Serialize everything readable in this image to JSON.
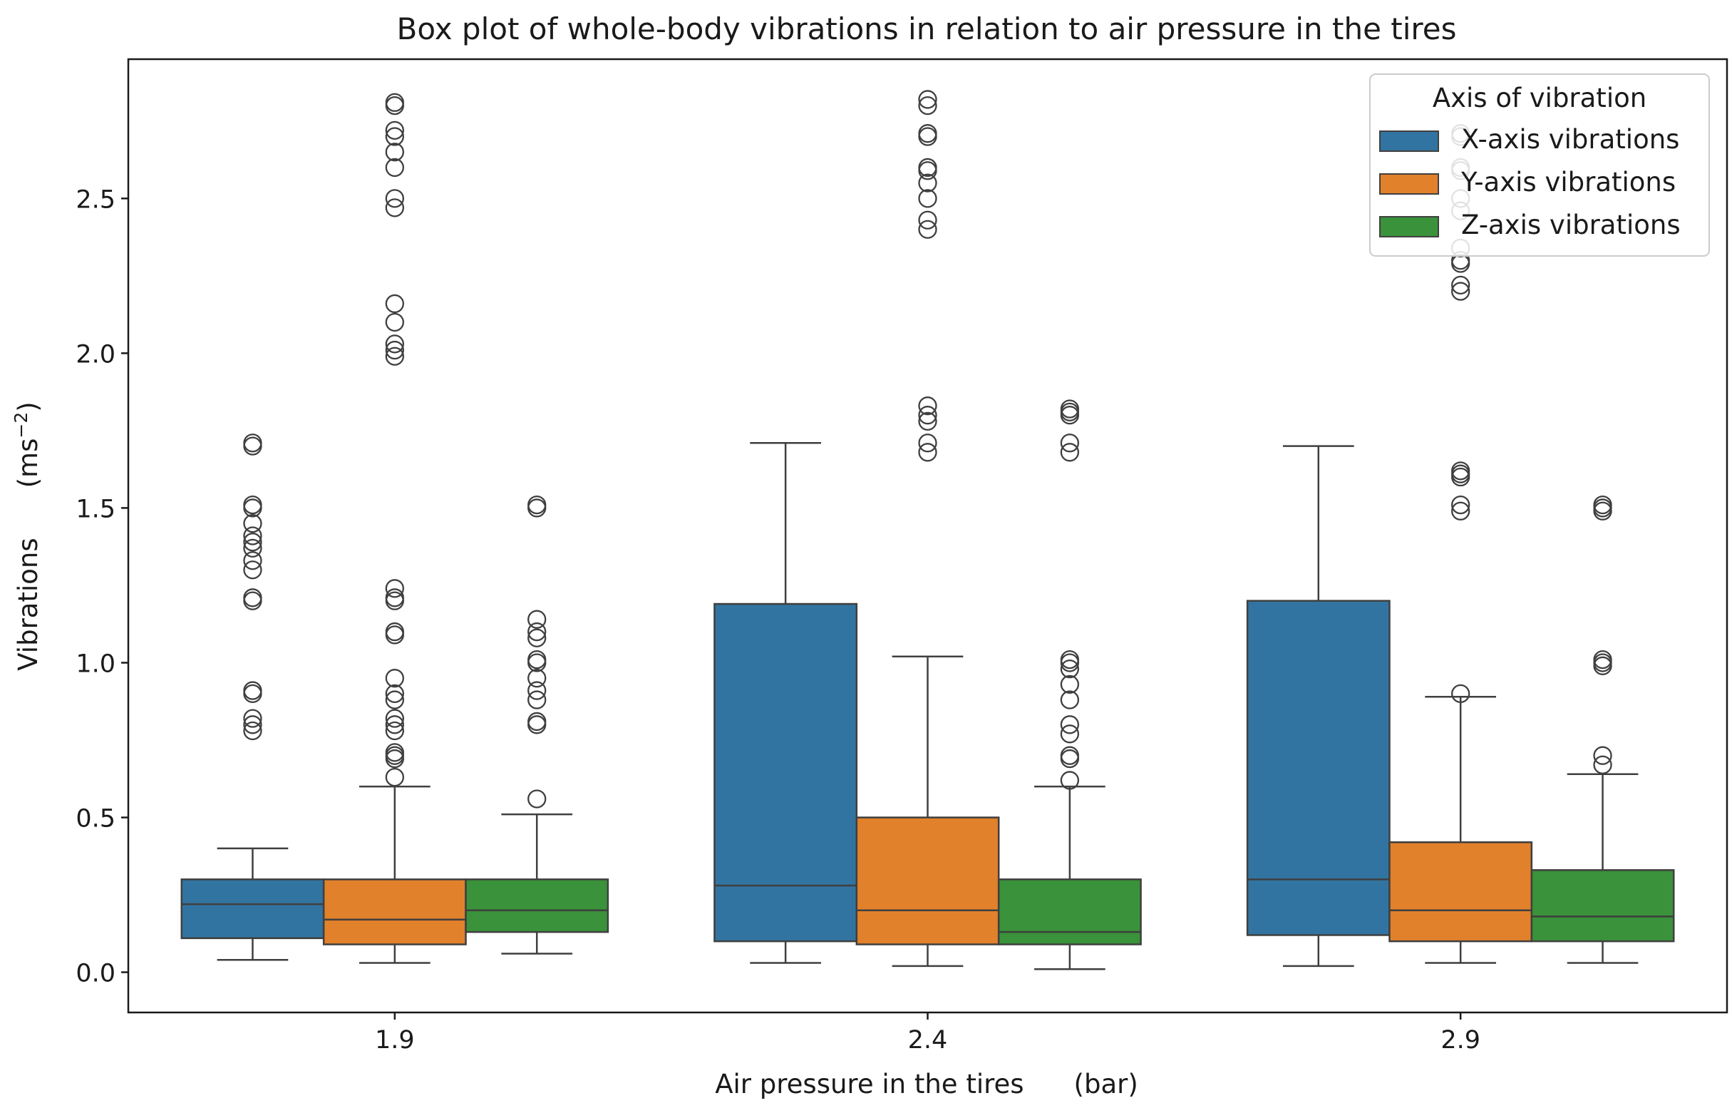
{
  "chart_data": {
    "type": "box",
    "title": "Box plot of whole-body vibrations in relation to air pressure in the tires",
    "xlabel": {
      "text": "Air pressure in the tires",
      "unit": "(bar)"
    },
    "ylabel": {
      "text": "Vibrations",
      "unit": "(ms",
      "unit_exp": "−2",
      "unit_close": ")"
    },
    "ylim": [
      -0.13,
      2.95
    ],
    "yticks": [
      0.0,
      0.5,
      1.0,
      1.5,
      2.0,
      2.5
    ],
    "ytick_labels": [
      "0.0",
      "0.5",
      "1.0",
      "1.5",
      "2.0",
      "2.5"
    ],
    "categories": [
      "1.9",
      "2.4",
      "2.9"
    ],
    "legend": {
      "title": "Axis of vibration",
      "position": "top-right",
      "entries": [
        "X-axis vibrations",
        "Y-axis vibrations",
        "Z-axis vibrations"
      ]
    },
    "series": [
      {
        "name": "X-axis vibrations",
        "color": "#3274a1",
        "boxes": [
          {
            "category": "1.9",
            "whislo": 0.04,
            "q1": 0.11,
            "med": 0.22,
            "q3": 0.3,
            "whishi": 0.4,
            "fliers": [
              0.78,
              0.8,
              0.82,
              0.9,
              0.91,
              1.2,
              1.21,
              1.3,
              1.33,
              1.37,
              1.39,
              1.41,
              1.45,
              1.5,
              1.51,
              1.7,
              1.71
            ]
          },
          {
            "category": "2.4",
            "whislo": 0.03,
            "q1": 0.1,
            "med": 0.28,
            "q3": 1.19,
            "whishi": 1.71,
            "fliers": []
          },
          {
            "category": "2.9",
            "whislo": 0.02,
            "q1": 0.12,
            "med": 0.3,
            "q3": 1.2,
            "whishi": 1.7,
            "fliers": []
          }
        ]
      },
      {
        "name": "Y-axis vibrations",
        "color": "#e1812c",
        "boxes": [
          {
            "category": "1.9",
            "whislo": 0.03,
            "q1": 0.09,
            "med": 0.17,
            "q3": 0.3,
            "whishi": 0.6,
            "fliers": [
              0.63,
              0.69,
              0.7,
              0.71,
              0.78,
              0.8,
              0.82,
              0.88,
              0.9,
              0.95,
              1.09,
              1.1,
              1.2,
              1.21,
              1.24,
              1.99,
              2.01,
              2.03,
              2.1,
              2.16,
              2.47,
              2.5,
              2.6,
              2.65,
              2.7,
              2.72,
              2.8,
              2.81
            ]
          },
          {
            "category": "2.4",
            "whislo": 0.02,
            "q1": 0.09,
            "med": 0.2,
            "q3": 0.5,
            "whishi": 1.02,
            "fliers": [
              1.68,
              1.71,
              1.78,
              1.8,
              1.83,
              2.4,
              2.43,
              2.5,
              2.55,
              2.59,
              2.6,
              2.7,
              2.71,
              2.8,
              2.82
            ]
          },
          {
            "category": "2.9",
            "whislo": 0.03,
            "q1": 0.1,
            "med": 0.2,
            "q3": 0.42,
            "whishi": 0.89,
            "fliers": [
              0.9,
              1.49,
              1.51,
              1.6,
              1.61,
              1.62,
              2.2,
              2.22,
              2.29,
              2.3,
              2.34,
              2.46,
              2.5,
              2.59,
              2.6,
              2.7,
              2.71
            ]
          }
        ]
      },
      {
        "name": "Z-axis vibrations",
        "color": "#3a923a",
        "boxes": [
          {
            "category": "1.9",
            "whislo": 0.06,
            "q1": 0.13,
            "med": 0.2,
            "q3": 0.3,
            "whishi": 0.51,
            "fliers": [
              0.56,
              0.8,
              0.81,
              0.88,
              0.91,
              0.95,
              1.0,
              1.01,
              1.08,
              1.1,
              1.14,
              1.5,
              1.51
            ]
          },
          {
            "category": "2.4",
            "whislo": 0.01,
            "q1": 0.09,
            "med": 0.13,
            "q3": 0.3,
            "whishi": 0.6,
            "fliers": [
              0.62,
              0.69,
              0.7,
              0.77,
              0.8,
              0.88,
              0.93,
              0.98,
              1.0,
              1.01,
              1.68,
              1.71,
              1.8,
              1.81,
              1.82
            ]
          },
          {
            "category": "2.9",
            "whislo": 0.03,
            "q1": 0.1,
            "med": 0.18,
            "q3": 0.33,
            "whishi": 0.64,
            "fliers": [
              0.67,
              0.7,
              0.99,
              1.0,
              1.01,
              1.49,
              1.5,
              1.51
            ]
          }
        ]
      }
    ]
  }
}
